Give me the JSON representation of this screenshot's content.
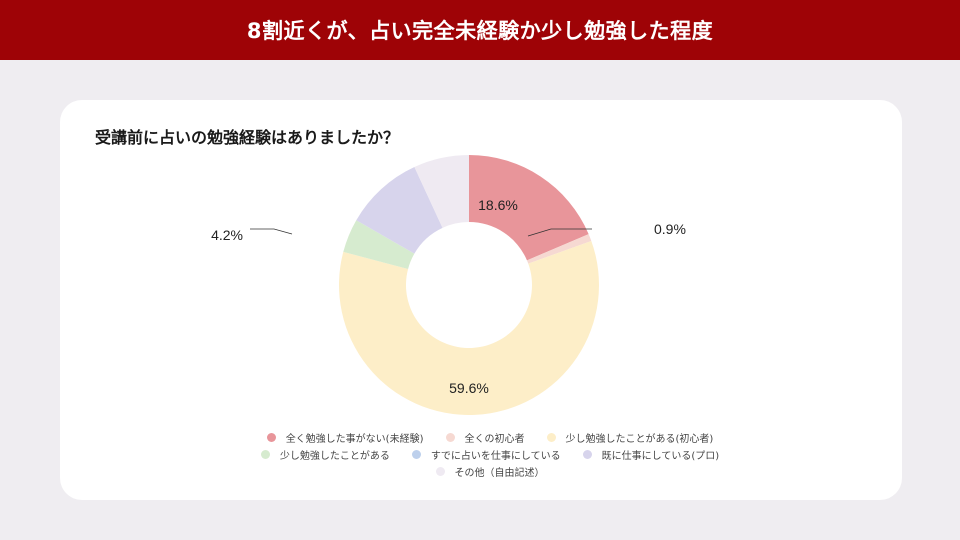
{
  "header": {
    "title": "8割近くが、占い完全未経験か少し勉強した程度"
  },
  "card": {
    "question": "受講前に占いの勉強経験はありましたか？"
  },
  "labels": {
    "red": "18.6%",
    "pink": "0.9%",
    "yellow": "59.6%",
    "green": "4.2%"
  },
  "legend": [
    {
      "label": "全く勉強した事がない(未経験)",
      "color": "#e8959a"
    },
    {
      "label": "全くの初心者",
      "color": "#f6d9d2"
    },
    {
      "label": "少し勉強したことがある(初心者)",
      "color": "#fdeec8"
    },
    {
      "label": "少し勉強したことがある",
      "color": "#d6ebcf"
    },
    {
      "label": "すでに占いを仕事にしている",
      "color": "#bdd0ec"
    },
    {
      "label": "既に仕事にしている(プロ)",
      "color": "#d7d4ec"
    },
    {
      "label": "その他（自由記述）",
      "color": "#efeaf2"
    }
  ],
  "chart_data": {
    "type": "pie",
    "subtype": "donut",
    "title": "受講前に占いの勉強経験はありましたか？",
    "categories": [
      "全く勉強した事がない(未経験)",
      "全くの初心者",
      "少し勉強したことがある(初心者)",
      "少し勉強したことがある",
      "すでに占いを仕事にしている",
      "既に仕事にしている(プロ)",
      "その他（自由記述）"
    ],
    "values": [
      18.6,
      0.9,
      59.6,
      4.2,
      0.0,
      9.8,
      6.9
    ],
    "unit": "%",
    "data_labels_shown": [
      "18.6%",
      "0.9%",
      "59.6%",
      "4.2%"
    ],
    "colors": [
      "#e8959a",
      "#f6d9d2",
      "#fdeec8",
      "#d6ebcf",
      "#bdd0ec",
      "#d7d4ec",
      "#efeaf2"
    ],
    "legend_position": "bottom",
    "start_angle": "12 o'clock, clockwise"
  }
}
